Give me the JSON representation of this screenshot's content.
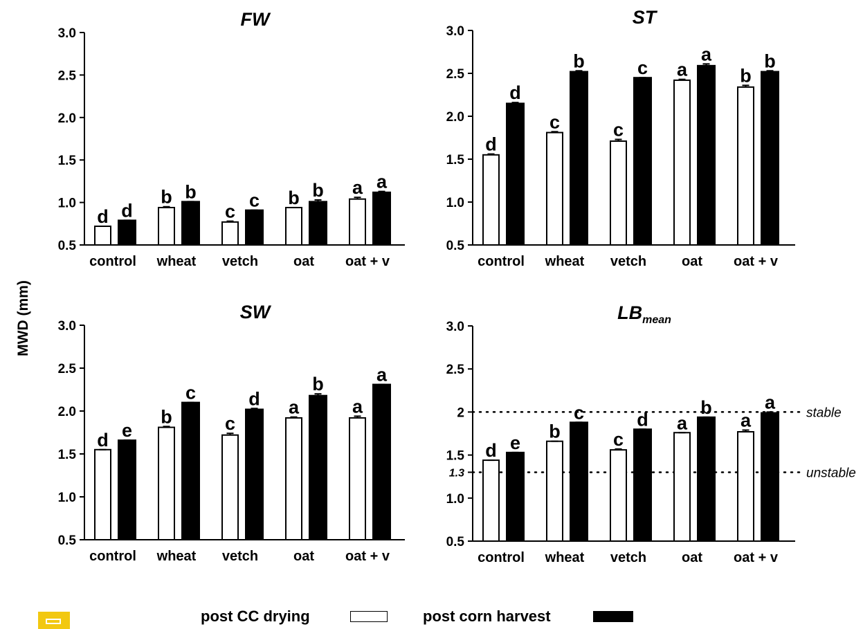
{
  "y_axis_label": "MWD (mm)",
  "legend": {
    "items": [
      {
        "label": "post CC drying",
        "fill": "#ffffff"
      },
      {
        "label": "post corn harvest",
        "fill": "#000000"
      }
    ]
  },
  "chart_data": [
    {
      "type": "bar",
      "title": "FW",
      "title_sub": "",
      "categories": [
        "control",
        "wheat",
        "vetch",
        "oat",
        "oat + v"
      ],
      "ylim": [
        0.5,
        3.0
      ],
      "yticks": [
        "0.5",
        "1.0",
        "1.5",
        "2.0",
        "2.5",
        "3.0"
      ],
      "series": [
        {
          "name": "post CC drying",
          "values": [
            0.72,
            0.94,
            0.77,
            0.94,
            1.04
          ],
          "errors": [
            0.0,
            0.01,
            0.01,
            0.0,
            0.02
          ],
          "letters": [
            "d",
            "b",
            "c",
            "b",
            "a"
          ]
        },
        {
          "name": "post corn harvest",
          "values": [
            0.79,
            1.01,
            0.91,
            1.01,
            1.12
          ],
          "errors": [
            0.0,
            0.0,
            0.0,
            0.02,
            0.01
          ],
          "letters": [
            "d",
            "b",
            "c",
            "b",
            "a"
          ]
        }
      ]
    },
    {
      "type": "bar",
      "title": "ST",
      "title_sub": "",
      "categories": [
        "control",
        "wheat",
        "vetch",
        "oat",
        "oat + v"
      ],
      "ylim": [
        0.5,
        3.0
      ],
      "yticks": [
        "0.5",
        "1.0",
        "1.5",
        "2.0",
        "2.5",
        "3.0"
      ],
      "series": [
        {
          "name": "post CC drying",
          "values": [
            1.55,
            1.81,
            1.71,
            2.42,
            2.34
          ],
          "errors": [
            0.01,
            0.01,
            0.02,
            0.01,
            0.02
          ],
          "letters": [
            "d",
            "c",
            "c",
            "a",
            "b"
          ]
        },
        {
          "name": "post corn harvest",
          "values": [
            2.15,
            2.52,
            2.45,
            2.59,
            2.52
          ],
          "errors": [
            0.01,
            0.01,
            0.0,
            0.02,
            0.01
          ],
          "letters": [
            "d",
            "b",
            "c",
            "a",
            "b"
          ]
        }
      ]
    },
    {
      "type": "bar",
      "title": "SW",
      "title_sub": "",
      "categories": [
        "control",
        "wheat",
        "vetch",
        "oat",
        "oat + v"
      ],
      "ylim": [
        0.5,
        3.0
      ],
      "yticks": [
        "0.5",
        "1.0",
        "1.5",
        "2.0",
        "2.5",
        "3.0"
      ],
      "series": [
        {
          "name": "post CC drying",
          "values": [
            1.55,
            1.81,
            1.72,
            1.92,
            1.92
          ],
          "errors": [
            0.0,
            0.01,
            0.02,
            0.01,
            0.02
          ],
          "letters": [
            "d",
            "b",
            "c",
            "a",
            "a"
          ]
        },
        {
          "name": "post corn harvest",
          "values": [
            1.66,
            2.1,
            2.02,
            2.18,
            2.31
          ],
          "errors": [
            0.0,
            0.0,
            0.01,
            0.02,
            0.0
          ],
          "letters": [
            "e",
            "c",
            "d",
            "b",
            "a"
          ]
        }
      ]
    },
    {
      "type": "bar",
      "title": "LB",
      "title_sub": "mean",
      "categories": [
        "control",
        "wheat",
        "vetch",
        "oat",
        "oat + v"
      ],
      "ylim": [
        0.5,
        3.0
      ],
      "yticks": [
        "0.5",
        "1.0",
        "1.5",
        "2",
        "2.5",
        "3.0"
      ],
      "extra_ticks": [
        {
          "value": 1.3,
          "label": "1.3"
        }
      ],
      "reference_lines": [
        {
          "value": 2.0,
          "label": "stable"
        },
        {
          "value": 1.3,
          "label": "unstable"
        }
      ],
      "series": [
        {
          "name": "post CC drying",
          "values": [
            1.44,
            1.66,
            1.56,
            1.76,
            1.77
          ],
          "errors": [
            0.0,
            0.0,
            0.01,
            0.0,
            0.02
          ],
          "letters": [
            "d",
            "b",
            "c",
            "a",
            "a"
          ]
        },
        {
          "name": "post corn harvest",
          "values": [
            1.53,
            1.88,
            1.8,
            1.94,
            1.99
          ],
          "errors": [
            0.0,
            0.0,
            0.0,
            0.0,
            0.01
          ],
          "letters": [
            "e",
            "c",
            "d",
            "b",
            "a"
          ]
        }
      ]
    }
  ]
}
